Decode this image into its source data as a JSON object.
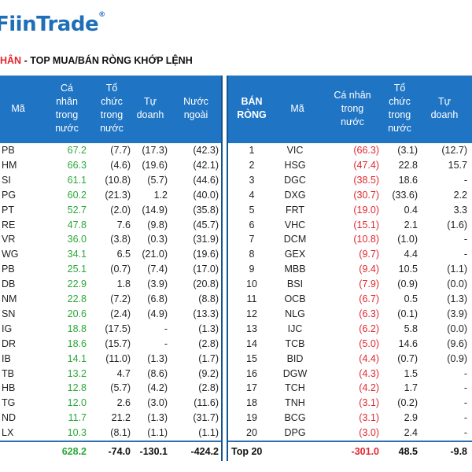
{
  "logo": "FiinTrade",
  "subtitle": {
    "highlight": "HÂN",
    "rest": " - TOP MUA/BÁN RÒNG KHỚP LỆNH"
  },
  "left": {
    "headers": [
      "Mã",
      "Cá\nnhân\ntrong\nnước",
      "Tổ\nchức\ntrong\nnước",
      "Tự\ndoanh",
      "Nước\nngoài"
    ],
    "rows": [
      [
        "PB",
        "67.2",
        "(7.7)",
        "(17.3)",
        "(42.3)"
      ],
      [
        "HM",
        "66.3",
        "(4.6)",
        "(19.6)",
        "(42.1)"
      ],
      [
        "SI",
        "61.1",
        "(10.8)",
        "(5.7)",
        "(44.6)"
      ],
      [
        "PG",
        "60.2",
        "(21.3)",
        "1.2",
        "(40.0)"
      ],
      [
        "PT",
        "52.7",
        "(2.0)",
        "(14.9)",
        "(35.8)"
      ],
      [
        "RE",
        "47.8",
        "7.6",
        "(9.8)",
        "(45.7)"
      ],
      [
        "VR",
        "36.0",
        "(3.8)",
        "(0.3)",
        "(31.9)"
      ],
      [
        "WG",
        "34.1",
        "6.5",
        "(21.0)",
        "(19.6)"
      ],
      [
        "PB",
        "25.1",
        "(0.7)",
        "(7.4)",
        "(17.0)"
      ],
      [
        "DB",
        "22.9",
        "1.8",
        "(3.9)",
        "(20.8)"
      ],
      [
        "NM",
        "22.8",
        "(7.2)",
        "(6.8)",
        "(8.8)"
      ],
      [
        "SN",
        "20.6",
        "(2.4)",
        "(4.9)",
        "(13.3)"
      ],
      [
        "IG",
        "18.8",
        "(17.5)",
        "-",
        "(1.3)"
      ],
      [
        "DR",
        "18.6",
        "(15.7)",
        "-",
        "(2.8)"
      ],
      [
        "IB",
        "14.1",
        "(11.0)",
        "(1.3)",
        "(1.7)"
      ],
      [
        "TB",
        "13.2",
        "4.7",
        "(8.6)",
        "(9.2)"
      ],
      [
        "HB",
        "12.8",
        "(5.7)",
        "(4.2)",
        "(2.8)"
      ],
      [
        "TG",
        "12.0",
        "2.6",
        "(3.0)",
        "(11.6)"
      ],
      [
        "ND",
        "11.7",
        "21.2",
        "(1.3)",
        "(31.7)"
      ],
      [
        "LX",
        "10.3",
        "(8.1)",
        "(1.1)",
        "(1.1)"
      ]
    ],
    "total": [
      "",
      "628.2",
      "-74.0",
      "-130.1",
      "-424.2"
    ]
  },
  "right": {
    "headers": [
      "BÁN\nRÒNG",
      "Mã",
      "Cá nhân\ntrong\nnước",
      "Tổ\nchức\ntrong\nnước",
      "Tự\ndoanh"
    ],
    "rows": [
      [
        "1",
        "VIC",
        "(66.3)",
        "(3.1)",
        "(12.7)"
      ],
      [
        "2",
        "HSG",
        "(47.4)",
        "22.8",
        "15.7"
      ],
      [
        "3",
        "DGC",
        "(38.5)",
        "18.6",
        "-"
      ],
      [
        "4",
        "DXG",
        "(30.7)",
        "(33.6)",
        "2.2"
      ],
      [
        "5",
        "FRT",
        "(19.0)",
        "0.4",
        "3.3"
      ],
      [
        "6",
        "VHC",
        "(15.1)",
        "2.1",
        "(1.6)"
      ],
      [
        "7",
        "DCM",
        "(10.8)",
        "(1.0)",
        "-"
      ],
      [
        "8",
        "GEX",
        "(9.7)",
        "4.4",
        "-"
      ],
      [
        "9",
        "MBB",
        "(9.4)",
        "10.5",
        "(1.1)"
      ],
      [
        "10",
        "BSI",
        "(7.9)",
        "(0.9)",
        "(0.0)"
      ],
      [
        "11",
        "OCB",
        "(6.7)",
        "0.5",
        "(1.3)"
      ],
      [
        "12",
        "NLG",
        "(6.3)",
        "(0.1)",
        "(3.9)"
      ],
      [
        "13",
        "IJC",
        "(6.2)",
        "5.8",
        "(0.0)"
      ],
      [
        "14",
        "TCB",
        "(5.0)",
        "14.6",
        "(9.6)"
      ],
      [
        "15",
        "BID",
        "(4.4)",
        "(0.7)",
        "(0.9)"
      ],
      [
        "16",
        "DGW",
        "(4.3)",
        "1.5",
        "-"
      ],
      [
        "17",
        "TCH",
        "(4.2)",
        "1.7",
        "-"
      ],
      [
        "18",
        "TNH",
        "(3.1)",
        "(0.2)",
        "-"
      ],
      [
        "19",
        "BCG",
        "(3.1)",
        "2.9",
        "-"
      ],
      [
        "20",
        "DPG",
        "(3.0)",
        "2.4",
        "-"
      ]
    ],
    "total": [
      "Top 20",
      "",
      "-301.0",
      "48.5",
      "-9.8"
    ]
  },
  "colors": {
    "header_bg": "#1f74c4",
    "buy": "#2aa838",
    "sell": "#e0282e",
    "logo": "#1e6fb8"
  }
}
